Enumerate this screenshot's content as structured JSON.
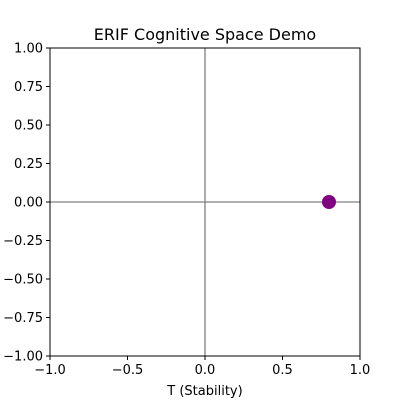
{
  "chart_data": {
    "type": "scatter",
    "title": "ERIF Cognitive Space Demo",
    "xlabel": "T (Stability)",
    "ylabel": "",
    "xlim": [
      -1.0,
      1.0
    ],
    "ylim": [
      -1.0,
      1.0
    ],
    "xticks": [
      "−1.0",
      "−0.5",
      "0.0",
      "0.5",
      "1.0"
    ],
    "yticks": [
      "−1.00",
      "−0.75",
      "−0.50",
      "−0.25",
      "0.00",
      "0.25",
      "0.50",
      "0.75",
      "1.00"
    ],
    "x_tick_values": [
      -1.0,
      -0.5,
      0.0,
      0.5,
      1.0
    ],
    "y_tick_values": [
      -1.0,
      -0.75,
      -0.5,
      -0.25,
      0.0,
      0.25,
      0.5,
      0.75,
      1.0
    ],
    "reference_lines": {
      "x": 0,
      "y": 0,
      "color": "#808080"
    },
    "grid": false,
    "points": [
      {
        "x": 0.8,
        "y": 0.0,
        "color": "#800080"
      }
    ]
  }
}
